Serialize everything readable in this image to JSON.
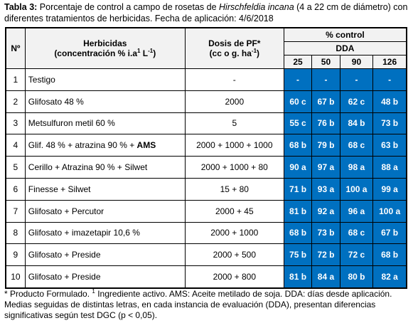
{
  "caption": {
    "label": "Tabla 3:",
    "text_before": " Porcentaje de control a campo de rosetas de ",
    "species": "Hirschfeldia incana",
    "text_after": " (4 a 22 cm de diámetro) con diferentes tratamientos de herbicidas. Fecha de aplicación: 4/6/2018"
  },
  "table": {
    "header": {
      "number": "Nº",
      "herbicide": "Herbicidas",
      "herbicide_unit": {
        "before": "(concentración % i.a",
        "sup1": "1",
        "middle": " L",
        "sup2": "-1",
        "after": ")"
      },
      "dose": "Dosis de PF*",
      "dose_unit": {
        "before": "(cc o g. ha",
        "sup": "-1",
        "after": ")"
      },
      "control": "% control",
      "dda": "DDA",
      "days": [
        25,
        50,
        90,
        126
      ]
    },
    "rows": [
      {
        "n": 1,
        "herbicide": "Testigo",
        "dose": "-",
        "values": [
          "-",
          "-",
          "-",
          "-"
        ]
      },
      {
        "n": 2,
        "herbicide": "Glifosato  48 %",
        "dose": "2000",
        "values": [
          "60 c",
          "67 b",
          "62 c",
          "48 b"
        ]
      },
      {
        "n": 3,
        "herbicide": "Metsulfuron metil 60 %",
        "dose": "5",
        "values": [
          "55 c",
          "76 b",
          "84 b",
          "73 b"
        ]
      },
      {
        "n": 4,
        "herbicide": "Glif. 48 % + atrazina 90 % + ",
        "herbicide_bold": "AMS",
        "dose": "2000 + 1000 + 1000",
        "values": [
          "68 b",
          "79 b",
          "68 c",
          "63 b"
        ]
      },
      {
        "n": 5,
        "herbicide": "Cerillo + Atrazina 90 % + Silwet",
        "dose": "2000 + 1000 + 80",
        "values": [
          "90 a",
          "97 a",
          "98 a",
          "88 a"
        ]
      },
      {
        "n": 6,
        "herbicide": "Finesse  + Silwet",
        "dose": "15 + 80",
        "values": [
          "71 b",
          "93 a",
          "100 a",
          "99 a"
        ]
      },
      {
        "n": 7,
        "herbicide": "Glifosato + Percutor",
        "dose": "2000 + 45",
        "values": [
          "81 b",
          "92 a",
          "96 a",
          "100 a"
        ]
      },
      {
        "n": 8,
        "herbicide": "Glifosato + imazetapir 10,6 %",
        "dose": "2000 + 1000",
        "values": [
          "68 b",
          "73 b",
          "68 c",
          "67 b"
        ]
      },
      {
        "n": 9,
        "herbicide": "Glifosato + Preside",
        "dose": "2000 + 500",
        "values": [
          "75 b",
          "72 b",
          "72 c",
          "68 b"
        ]
      },
      {
        "n": 10,
        "herbicide": "Glifosato + Preside",
        "dose": "2000 + 800",
        "values": [
          "81 b",
          "84 a",
          "80 b",
          "82 a"
        ]
      }
    ]
  },
  "footnote": {
    "text_before": "* Producto Formulado. ",
    "sup": "1",
    "text_after": " Ingrediente activo. AMS: Aceite metilado de soja.  DDA: días desde aplicación. Medias seguidas de distintas letras, en cada instancia de evaluación (DDA), presentan diferencias significativas según test DGC (p < 0,05)."
  }
}
